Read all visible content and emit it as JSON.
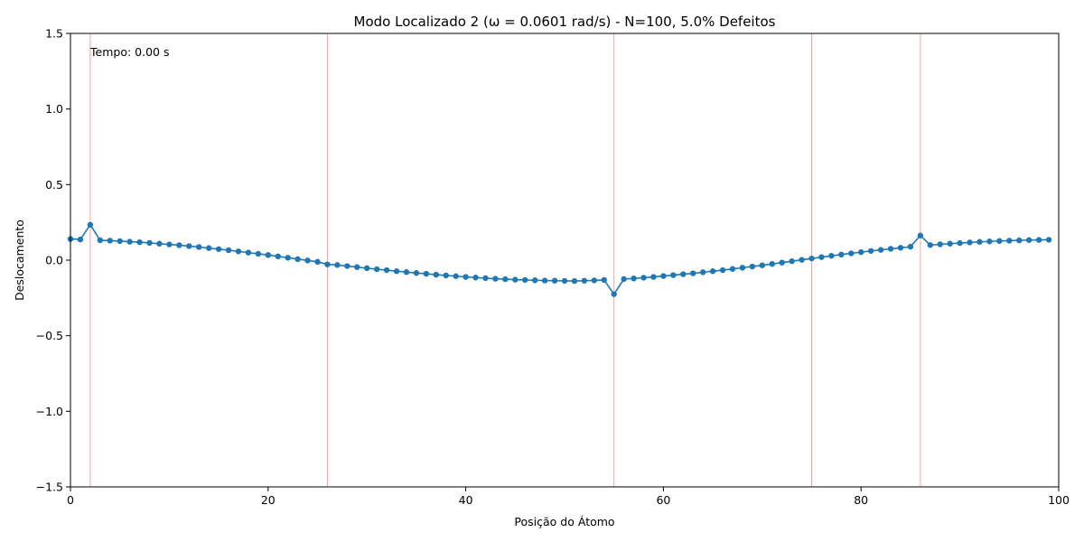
{
  "chart_data": {
    "type": "line",
    "title": "Modo Localizado 2 (ω = 0.0601 rad/s) - N=100, 5.0% Defeitos",
    "xlabel": "Posição do Átomo",
    "ylabel": "Deslocamento",
    "xlim": [
      0,
      100
    ],
    "ylim": [
      -1.5,
      1.5
    ],
    "xticks": [
      0,
      20,
      40,
      60,
      80,
      100
    ],
    "xtick_labels": [
      "0",
      "20",
      "40",
      "60",
      "80",
      "100"
    ],
    "yticks": [
      -1.5,
      -1.0,
      -0.5,
      0.0,
      0.5,
      1.0,
      1.5
    ],
    "ytick_labels": [
      "−1.5",
      "−1.0",
      "−0.5",
      "0.0",
      "0.5",
      "1.0",
      "1.5"
    ],
    "grid": false,
    "annotation": "Tempo: 0.00 s",
    "defect_positions": [
      2,
      26,
      55,
      75,
      86
    ],
    "colors": {
      "line": "#1f77b4",
      "defect": "#f4a6a6",
      "axes": "#000000"
    },
    "series": [
      {
        "x": [
          0,
          1,
          2,
          3,
          4,
          5,
          6,
          7,
          8,
          9,
          10,
          11,
          12,
          13,
          14,
          15,
          16,
          17,
          18,
          19,
          20,
          21,
          22,
          23,
          24,
          25,
          26,
          27,
          28,
          29,
          30,
          31,
          32,
          33,
          34,
          35,
          36,
          37,
          38,
          39,
          40,
          41,
          42,
          43,
          44,
          45,
          46,
          47,
          48,
          49,
          50,
          51,
          52,
          53,
          54,
          55,
          56,
          57,
          58,
          59,
          60,
          61,
          62,
          63,
          64,
          65,
          66,
          67,
          68,
          69,
          70,
          71,
          72,
          73,
          74,
          75,
          76,
          77,
          78,
          79,
          80,
          81,
          82,
          83,
          84,
          85,
          86,
          87,
          88,
          89,
          90,
          91,
          92,
          93,
          94,
          95,
          96,
          97,
          98,
          99
        ],
        "y": [
          0.14,
          0.137,
          0.234,
          0.132,
          0.129,
          0.126,
          0.122,
          0.119,
          0.114,
          0.109,
          0.104,
          0.099,
          0.093,
          0.087,
          0.08,
          0.073,
          0.066,
          0.058,
          0.05,
          0.042,
          0.034,
          0.025,
          0.016,
          0.007,
          -0.002,
          -0.011,
          -0.028,
          -0.032,
          -0.039,
          -0.046,
          -0.053,
          -0.06,
          -0.066,
          -0.073,
          -0.079,
          -0.085,
          -0.09,
          -0.096,
          -0.101,
          -0.106,
          -0.111,
          -0.115,
          -0.119,
          -0.123,
          -0.126,
          -0.129,
          -0.131,
          -0.133,
          -0.135,
          -0.136,
          -0.137,
          -0.138,
          -0.136,
          -0.134,
          -0.131,
          -0.225,
          -0.125,
          -0.121,
          -0.116,
          -0.111,
          -0.105,
          -0.099,
          -0.093,
          -0.087,
          -0.08,
          -0.073,
          -0.066,
          -0.058,
          -0.05,
          -0.042,
          -0.034,
          -0.025,
          -0.016,
          -0.007,
          0.002,
          0.011,
          0.02,
          0.029,
          0.037,
          0.045,
          0.053,
          0.061,
          0.068,
          0.075,
          0.082,
          0.089,
          0.163,
          0.1,
          0.105,
          0.109,
          0.113,
          0.117,
          0.121,
          0.124,
          0.127,
          0.129,
          0.131,
          0.133,
          0.134,
          0.135
        ]
      }
    ]
  }
}
